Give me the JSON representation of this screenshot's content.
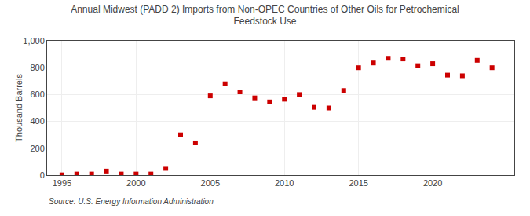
{
  "chart_data": {
    "type": "scatter",
    "title": "Annual Midwest (PADD 2) Imports from Non-OPEC Countries of Other Oils for Petrochemical\nFeedstock Use",
    "ylabel": "Thousand Barrels",
    "source": "Source: U.S. Energy Information Administration",
    "x": [
      1995,
      1996,
      1997,
      1998,
      1999,
      2000,
      2001,
      2002,
      2003,
      2004,
      2005,
      2006,
      2007,
      2008,
      2009,
      2010,
      2011,
      2012,
      2013,
      2014,
      2015,
      2016,
      2017,
      2018,
      2019,
      2020,
      2021,
      2022,
      2023,
      2024
    ],
    "values": [
      2,
      8,
      8,
      30,
      8,
      8,
      8,
      50,
      300,
      240,
      590,
      680,
      620,
      575,
      545,
      565,
      600,
      505,
      500,
      630,
      800,
      835,
      870,
      865,
      815,
      830,
      745,
      740,
      855,
      800
    ],
    "color": "#cc0000",
    "marker": "square",
    "xlim": [
      1994.0,
      2025.5
    ],
    "ylim": [
      0,
      1000
    ],
    "xticks": [
      1995,
      2000,
      2005,
      2010,
      2015,
      2020
    ],
    "yticks": [
      0,
      200,
      400,
      600,
      800,
      {
        "value": 1000,
        "label": "1,000"
      }
    ],
    "grid": true
  }
}
